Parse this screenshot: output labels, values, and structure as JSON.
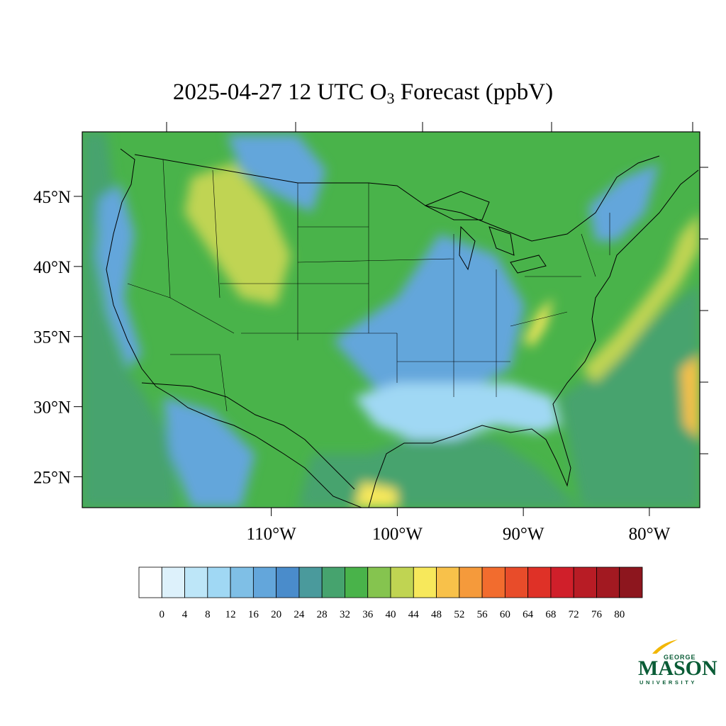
{
  "title": {
    "prefix": "2025-04-27 12 UTC O",
    "subscript": "3",
    "suffix": " Forecast (ppbV)"
  },
  "map": {
    "lon_range": [
      -125,
      -76
    ],
    "lat_range": [
      22.8,
      49.6
    ],
    "lat_ticks": [
      {
        "value": 45,
        "label": "45°N"
      },
      {
        "value": 40,
        "label": "40°N"
      },
      {
        "value": 35,
        "label": "35°N"
      },
      {
        "value": 30,
        "label": "30°N"
      },
      {
        "value": 25,
        "label": "25°N"
      }
    ],
    "lon_ticks": [
      {
        "value": -110,
        "label": "110°W"
      },
      {
        "value": -100,
        "label": "100°W"
      },
      {
        "value": -90,
        "label": "90°W"
      },
      {
        "value": -80,
        "label": "80°W"
      }
    ],
    "field_regions": [
      {
        "name": "pacific-ocean",
        "value": 34
      },
      {
        "name": "atlantic-ocean",
        "value": 34
      },
      {
        "name": "gulf-of-mexico",
        "value": 31
      },
      {
        "name": "mountain-west",
        "value": 38
      },
      {
        "name": "rockies-high",
        "value": 44
      },
      {
        "name": "southeast-gulf-coast",
        "value": 12
      },
      {
        "name": "mississippi-valley",
        "value": 22
      },
      {
        "name": "great-lakes",
        "value": 25
      },
      {
        "name": "atlantic-plume",
        "value": 46
      },
      {
        "name": "far-atlantic-maximum",
        "value": 53
      }
    ]
  },
  "colorbar": {
    "colors": [
      "#ffffff",
      "#ddf1fb",
      "#bde6f8",
      "#a0d8f4",
      "#7fbfe6",
      "#63a6db",
      "#4a8ccb",
      "#4a9a9c",
      "#46a36e",
      "#49b34a",
      "#85c44f",
      "#c0d452",
      "#f7e85b",
      "#f8c14a",
      "#f59a3b",
      "#f26c2e",
      "#e84c2a",
      "#df3127",
      "#d01f2a",
      "#b81c25",
      "#a21921",
      "#8d161e"
    ],
    "tick_labels": [
      "0",
      "4",
      "8",
      "12",
      "16",
      "20",
      "24",
      "28",
      "32",
      "36",
      "40",
      "44",
      "48",
      "52",
      "56",
      "60",
      "64",
      "68",
      "72",
      "76",
      "80"
    ]
  },
  "logo": {
    "line1": "GEORGE",
    "line2": "MASON",
    "line3": "UNIVERSITY",
    "color": "#0a5c36",
    "accent": "#f2b705"
  }
}
